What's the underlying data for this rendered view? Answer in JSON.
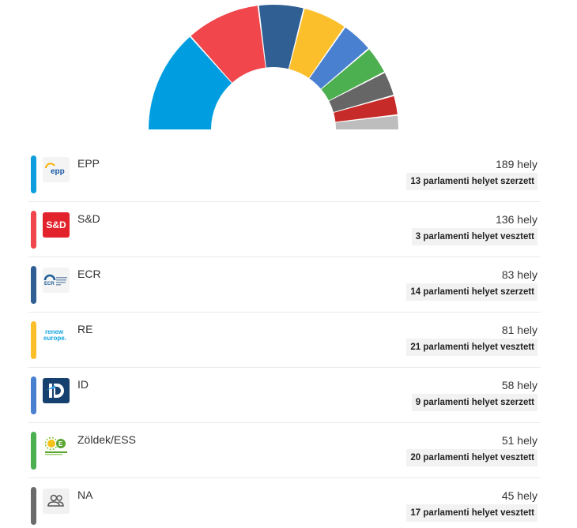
{
  "chart_data": {
    "type": "pie",
    "subtype": "half-donut parliament",
    "series": [
      {
        "name": "EPP",
        "value": 189,
        "color": "#009ee0"
      },
      {
        "name": "S&D",
        "value": 136,
        "color": "#f0464c"
      },
      {
        "name": "ECR",
        "value": 83,
        "color": "#2f5f93"
      },
      {
        "name": "RE",
        "value": 81,
        "color": "#fcbf2c"
      },
      {
        "name": "ID",
        "value": 58,
        "color": "#4a80d0"
      },
      {
        "name": "Zöldek/ESS",
        "value": 51,
        "color": "#4caf50"
      },
      {
        "name": "NA",
        "value": 45,
        "color": "#666666"
      },
      {
        "name": "",
        "value": 36,
        "color": "#c62b29"
      },
      {
        "name": "",
        "value": 26,
        "color": "#bdbdbd"
      }
    ]
  },
  "parties": [
    {
      "name": "EPP",
      "seats": "189 hely",
      "change": "13 parlamenti helyet szerzett",
      "color": "#0e9ddd",
      "logo_icon": "epp-logo-icon",
      "logo_text": "epp"
    },
    {
      "name": "S&D",
      "seats": "136 hely",
      "change": "3 parlamenti helyet vesztett",
      "color": "#f0464c",
      "logo_icon": "sd-logo-icon",
      "logo_text": "S&D"
    },
    {
      "name": "ECR",
      "seats": "83 hely",
      "change": "14 parlamenti helyet szerzett",
      "color": "#2f5f93",
      "logo_icon": "ecr-logo-icon",
      "logo_text": "ECR"
    },
    {
      "name": "RE",
      "seats": "81 hely",
      "change": "21 parlamenti helyet vesztett",
      "color": "#fcbf2c",
      "logo_icon": "renew-europe-logo-icon",
      "logo_text": "renew europe."
    },
    {
      "name": "ID",
      "seats": "58 hely",
      "change": "9 parlamenti helyet szerzett",
      "color": "#4a80d0",
      "logo_icon": "id-logo-icon",
      "logo_text": "ID"
    },
    {
      "name": "Zöldek/ESS",
      "seats": "51 hely",
      "change": "20 parlamenti helyet vesztett",
      "color": "#4caf50",
      "logo_icon": "greens-efa-logo-icon",
      "logo_text": ""
    },
    {
      "name": "NA",
      "seats": "45 hely",
      "change": "17 parlamenti helyet vesztett",
      "color": "#6b6b6b",
      "logo_icon": "people-icon",
      "logo_text": ""
    }
  ]
}
